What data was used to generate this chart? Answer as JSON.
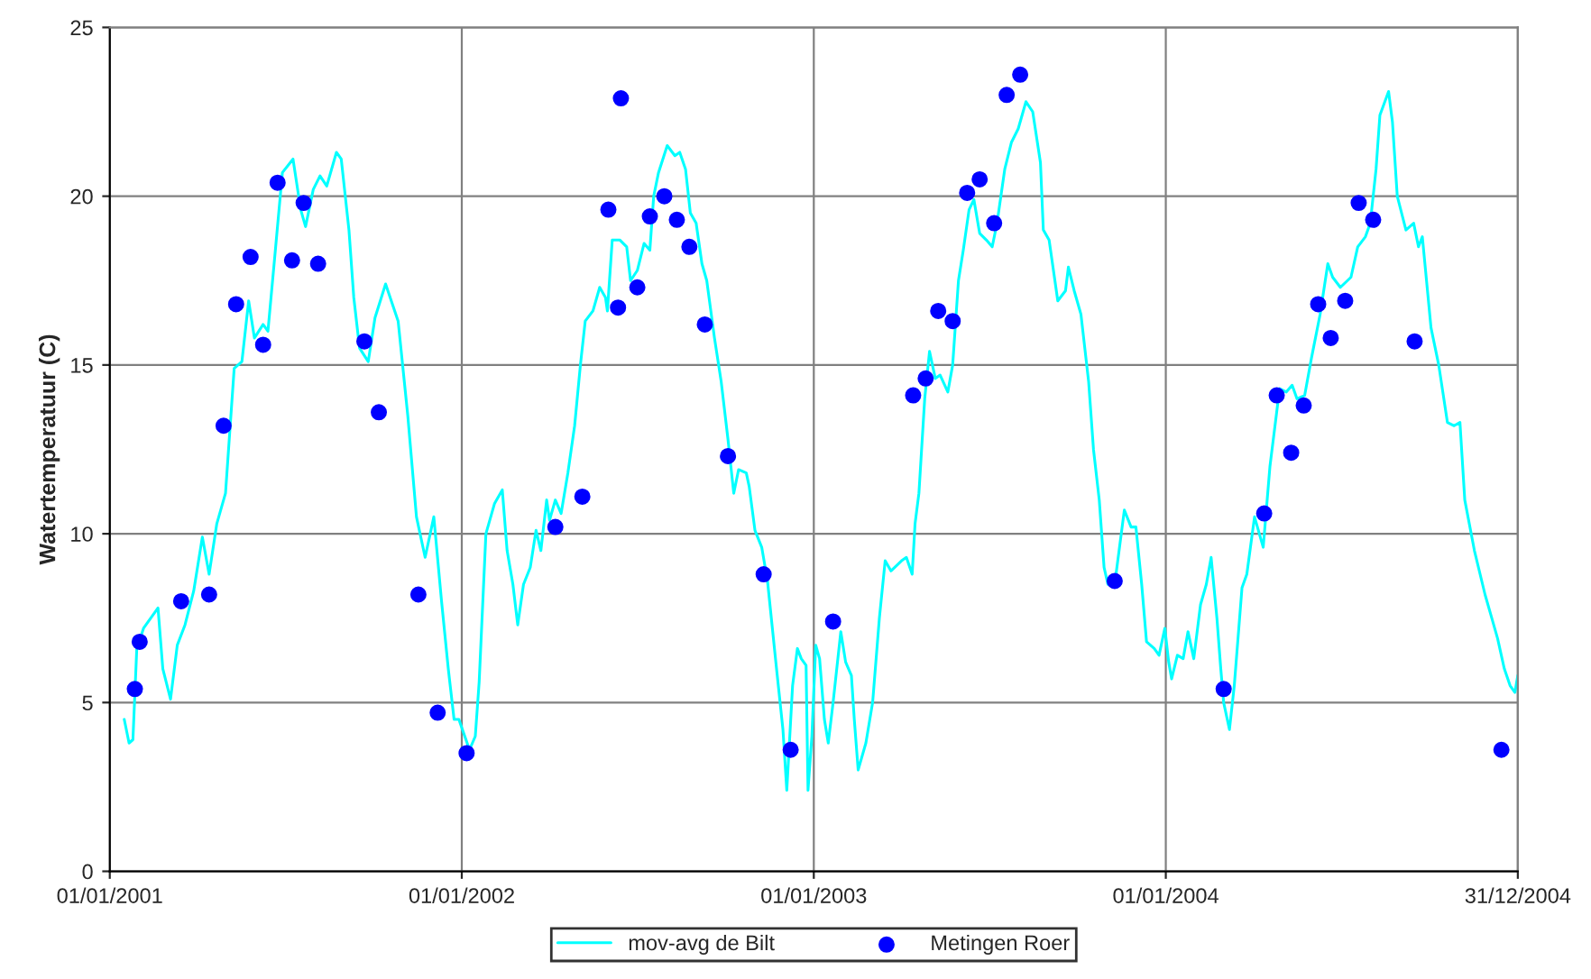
{
  "chart_data": {
    "type": "line",
    "ylabel": "Watertemperatuur (C)",
    "xlim": [
      "2001-01-01",
      "2004-12-31"
    ],
    "xticks": [
      {
        "value": "2001-01-01",
        "label": "01/01/2001"
      },
      {
        "value": "2002-01-01",
        "label": "01/01/2002"
      },
      {
        "value": "2003-01-01",
        "label": "01/01/2003"
      },
      {
        "value": "2004-01-01",
        "label": "01/01/2004"
      },
      {
        "value": "2004-12-31",
        "label": "31/12/2004"
      }
    ],
    "ylim": [
      0,
      25
    ],
    "yticks": [
      0,
      5,
      10,
      15,
      20,
      25
    ],
    "grid": true,
    "legend": "bottom",
    "series": [
      {
        "name": "mov-avg de Bilt",
        "color": "#00ffff",
        "marker": "none",
        "line_style": "solid",
        "x": [
          "2001-01-16",
          "2001-01-21",
          "2001-01-25",
          "2001-01-29",
          "2001-02-05",
          "2001-02-20",
          "2001-02-25",
          "2001-03-05",
          "2001-03-12",
          "2001-03-20",
          "2001-03-29",
          "2001-04-07",
          "2001-04-14",
          "2001-04-22",
          "2001-05-01",
          "2001-05-10",
          "2001-05-18",
          "2001-05-25",
          "2001-05-31",
          "2001-06-09",
          "2001-06-14",
          "2001-06-22",
          "2001-06-29",
          "2001-07-10",
          "2001-07-18",
          "2001-07-23",
          "2001-07-31",
          "2001-08-07",
          "2001-08-14",
          "2001-08-24",
          "2001-08-29",
          "2001-09-06",
          "2001-09-11",
          "2001-09-17",
          "2001-09-26",
          "2001-10-03",
          "2001-10-14",
          "2001-10-27",
          "2001-11-06",
          "2001-11-15",
          "2001-11-24",
          "2001-12-03",
          "2001-12-11",
          "2001-12-18",
          "2001-12-24",
          "2001-12-29",
          "2002-01-09",
          "2002-01-15",
          "2002-01-19",
          "2002-01-26",
          "2002-02-04",
          "2002-02-12",
          "2002-02-17",
          "2002-02-23",
          "2002-02-28",
          "2002-03-06",
          "2002-03-13",
          "2002-03-19",
          "2002-03-24",
          "2002-03-30",
          "2002-04-02",
          "2002-04-08",
          "2002-04-14",
          "2002-04-21",
          "2002-04-28",
          "2002-05-04",
          "2002-05-09",
          "2002-05-17",
          "2002-05-24",
          "2002-05-30",
          "2002-06-01",
          "2002-06-06",
          "2002-06-14",
          "2002-06-21",
          "2002-06-25",
          "2002-07-02",
          "2002-07-09",
          "2002-07-15",
          "2002-07-19",
          "2002-07-24",
          "2002-08-02",
          "2002-08-10",
          "2002-08-15",
          "2002-08-21",
          "2002-08-26",
          "2002-09-01",
          "2002-09-07",
          "2002-09-12",
          "2002-09-20",
          "2002-09-27",
          "2002-10-04",
          "2002-10-10",
          "2002-10-15",
          "2002-10-23",
          "2002-10-26",
          "2002-11-01",
          "2002-11-08",
          "2002-11-14",
          "2002-11-23",
          "2002-11-30",
          "2002-12-04",
          "2002-12-10",
          "2002-12-15",
          "2002-12-19",
          "2002-12-24",
          "2002-12-26",
          "2002-12-30",
          "2003-01-03",
          "2003-01-07",
          "2003-01-12",
          "2003-01-16",
          "2003-01-21",
          "2003-01-29",
          "2003-02-03",
          "2003-02-09",
          "2003-02-12",
          "2003-02-16",
          "2003-02-24",
          "2003-03-03",
          "2003-03-10",
          "2003-03-16",
          "2003-03-22",
          "2003-04-02",
          "2003-04-07",
          "2003-04-13",
          "2003-04-16",
          "2003-04-20",
          "2003-04-26",
          "2003-05-01",
          "2003-05-07",
          "2003-05-12",
          "2003-05-20",
          "2003-05-25",
          "2003-05-31",
          "2003-06-05",
          "2003-06-11",
          "2003-06-16",
          "2003-06-22",
          "2003-06-29",
          "2003-07-05",
          "2003-07-10",
          "2003-07-18",
          "2003-07-25",
          "2003-08-01",
          "2003-08-09",
          "2003-08-16",
          "2003-08-24",
          "2003-08-27",
          "2003-09-02",
          "2003-09-11",
          "2003-09-19",
          "2003-09-22",
          "2003-09-28",
          "2003-10-05",
          "2003-10-13",
          "2003-10-18",
          "2003-10-24",
          "2003-10-29",
          "2003-11-02",
          "2003-11-09",
          "2003-11-19",
          "2003-11-26",
          "2003-12-01",
          "2003-12-07",
          "2003-12-12",
          "2003-12-20",
          "2003-12-25",
          "2003-12-31",
          "2004-01-04",
          "2004-01-07",
          "2004-01-13",
          "2004-01-19",
          "2004-01-24",
          "2004-01-30",
          "2004-02-06",
          "2004-02-12",
          "2004-02-17",
          "2004-02-23",
          "2004-02-27",
          "2004-03-01",
          "2004-03-07",
          "2004-03-12",
          "2004-03-20",
          "2004-03-25",
          "2004-04-02",
          "2004-04-11",
          "2004-04-18",
          "2004-04-28",
          "2004-05-05",
          "2004-05-11",
          "2004-05-16",
          "2004-05-24",
          "2004-05-31",
          "2004-06-09",
          "2004-06-17",
          "2004-06-22",
          "2004-06-30",
          "2004-07-11",
          "2004-07-18",
          "2004-07-26",
          "2004-07-31",
          "2004-08-06",
          "2004-08-10",
          "2004-08-19",
          "2004-08-23",
          "2004-08-28",
          "2004-09-06",
          "2004-09-14",
          "2004-09-19",
          "2004-09-23",
          "2004-10-02",
          "2004-10-10",
          "2004-10-19",
          "2004-10-26",
          "2004-11-01",
          "2004-11-06",
          "2004-11-16",
          "2004-11-27",
          "2004-12-04",
          "2004-12-10",
          "2004-12-17",
          "2004-12-23",
          "2004-12-28",
          "2004-12-31"
        ],
        "values": [
          4.5,
          3.8,
          3.9,
          6.6,
          7.2,
          7.8,
          6.0,
          5.1,
          6.7,
          7.3,
          8.3,
          9.9,
          8.8,
          10.3,
          11.2,
          14.9,
          15.1,
          16.9,
          15.8,
          16.2,
          16.0,
          18.5,
          20.7,
          21.1,
          19.6,
          19.1,
          20.2,
          20.6,
          20.3,
          21.3,
          21.1,
          19.0,
          17.0,
          15.5,
          15.1,
          16.4,
          17.4,
          16.3,
          13.5,
          10.5,
          9.3,
          10.5,
          8.0,
          6.0,
          4.5,
          4.5,
          3.6,
          4.0,
          5.6,
          10.0,
          10.9,
          11.3,
          9.5,
          8.5,
          7.3,
          8.5,
          9.0,
          10.1,
          9.5,
          11.0,
          10.4,
          11.0,
          10.6,
          11.8,
          13.2,
          15.0,
          16.3,
          16.6,
          17.3,
          17.0,
          16.6,
          18.7,
          18.7,
          18.5,
          17.5,
          17.8,
          18.6,
          18.4,
          20.0,
          20.7,
          21.5,
          21.2,
          21.3,
          20.8,
          19.5,
          19.2,
          18.0,
          17.5,
          15.8,
          14.5,
          12.8,
          11.2,
          11.9,
          11.8,
          11.4,
          10.1,
          9.6,
          8.6,
          6.1,
          4.2,
          2.4,
          5.5,
          6.6,
          6.3,
          6.1,
          2.4,
          4.0,
          6.7,
          6.3,
          4.5,
          3.8,
          5.0,
          7.1,
          6.2,
          5.8,
          4.5,
          3.0,
          3.8,
          5.0,
          7.5,
          9.2,
          8.9,
          9.2,
          9.3,
          8.8,
          10.3,
          11.2,
          14.0,
          15.4,
          14.6,
          14.7,
          14.2,
          15.0,
          17.5,
          18.4,
          19.6,
          19.9,
          18.9,
          18.7,
          18.5,
          19.2,
          20.8,
          21.6,
          22.0,
          22.8,
          22.5,
          21.0,
          19.0,
          18.7,
          16.9,
          17.2,
          17.9,
          17.2,
          16.5,
          14.5,
          12.5,
          11.0,
          9.0,
          8.5,
          8.5,
          10.7,
          10.2,
          10.2,
          8.5,
          6.8,
          6.6,
          6.4,
          7.2,
          6.2,
          5.7,
          6.4,
          6.3,
          7.1,
          6.3,
          7.9,
          8.5,
          9.3,
          7.5,
          6.0,
          5.0,
          4.2,
          5.5,
          8.4,
          8.8,
          10.5,
          9.6,
          12.0,
          14.3,
          14.2,
          14.4,
          14.0,
          14.1,
          15.2,
          16.5,
          18.0,
          17.6,
          17.3,
          17.6,
          18.5,
          18.8,
          19.2,
          20.8,
          22.4,
          23.1,
          22.2,
          20.0,
          19.0,
          19.2,
          18.5,
          18.8,
          16.1,
          15.0,
          13.3,
          13.2,
          13.3,
          11.0,
          9.5,
          8.2,
          7.5,
          6.9,
          6.0,
          5.5,
          5.3,
          5.8
        ]
      },
      {
        "name": "Metingen Roer",
        "type": "scatter",
        "color": "#0000ff",
        "marker": "circle",
        "x": [
          "2001-01-27",
          "2001-02-01",
          "2001-03-16",
          "2001-04-14",
          "2001-04-29",
          "2001-05-12",
          "2001-05-27",
          "2001-06-09",
          "2001-06-24",
          "2001-07-09",
          "2001-07-21",
          "2001-08-05",
          "2001-09-22",
          "2001-10-07",
          "2001-11-17",
          "2001-12-07",
          "2002-01-06",
          "2002-04-08",
          "2002-05-06",
          "2002-06-02",
          "2002-06-12",
          "2002-06-15",
          "2002-07-02",
          "2002-07-15",
          "2002-07-30",
          "2002-08-12",
          "2002-08-25",
          "2002-09-10",
          "2002-10-04",
          "2002-11-10",
          "2002-12-08",
          "2003-01-21",
          "2003-04-14",
          "2003-04-27",
          "2003-05-10",
          "2003-05-25",
          "2003-06-09",
          "2003-06-22",
          "2003-07-07",
          "2003-07-20",
          "2003-08-03",
          "2003-11-09",
          "2004-03-01",
          "2004-04-12",
          "2004-04-25",
          "2004-05-10",
          "2004-05-23",
          "2004-06-07",
          "2004-06-20",
          "2004-07-05",
          "2004-07-19",
          "2004-08-03",
          "2004-09-15",
          "2004-12-14"
        ],
        "values": [
          5.4,
          6.8,
          8.0,
          8.2,
          13.2,
          16.8,
          18.2,
          15.6,
          20.4,
          18.1,
          19.8,
          18.0,
          15.7,
          13.6,
          8.2,
          4.7,
          3.5,
          10.2,
          11.1,
          19.6,
          16.7,
          22.9,
          17.3,
          19.4,
          20.0,
          19.3,
          18.5,
          16.2,
          12.3,
          8.8,
          3.6,
          7.4,
          14.1,
          14.6,
          16.6,
          16.3,
          20.1,
          20.5,
          19.2,
          23.0,
          23.6,
          8.6,
          5.4,
          10.6,
          14.1,
          12.4,
          13.8,
          16.8,
          15.8,
          16.9,
          19.8,
          19.3,
          15.7,
          3.6
        ]
      }
    ]
  }
}
